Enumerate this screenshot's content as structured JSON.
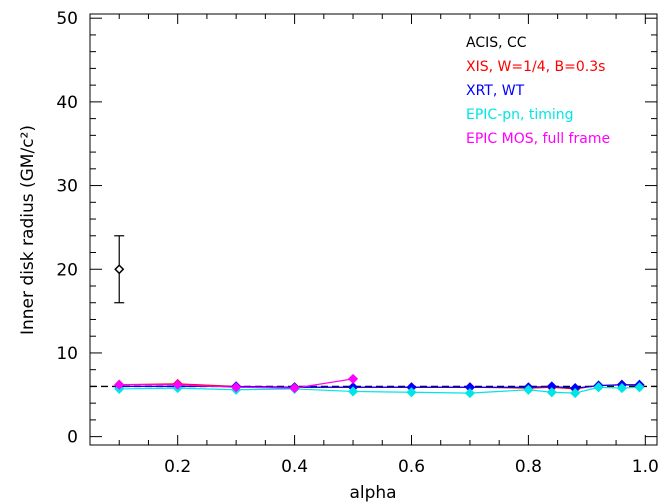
{
  "chart_data": {
    "type": "scatter",
    "xlabel": "alpha",
    "ylabel": "Inner disk radius (GM/c²)",
    "xlim": [
      0.05,
      1.02
    ],
    "ylim": [
      -1,
      50.5
    ],
    "x_ticks": [
      "0.2",
      "0.4",
      "0.6",
      "0.8",
      "1.0"
    ],
    "y_ticks": [
      "0",
      "10",
      "20",
      "30",
      "40",
      "50"
    ],
    "reference_line": {
      "y": 6,
      "style": "dashed",
      "color": "#000000"
    },
    "series": [
      {
        "name": "ACIS, CC",
        "color": "#000000",
        "marker": "diamond",
        "x": [
          0.1
        ],
        "y": [
          20
        ],
        "yerr": [
          4
        ]
      },
      {
        "name": "XIS, W=1/4, B=0.3s",
        "color": "#ff0000",
        "marker": "diamond",
        "x": [
          0.1,
          0.2,
          0.3,
          0.4,
          0.5,
          0.6,
          0.7,
          0.8,
          0.84,
          0.88,
          0.92,
          0.96,
          0.99
        ],
        "y": [
          6.2,
          6.3,
          6.0,
          5.9,
          5.9,
          5.9,
          5.9,
          5.8,
          5.9,
          5.7,
          6.1,
          6.2,
          6.1
        ]
      },
      {
        "name": "XRT, WT",
        "color": "#0000ff",
        "marker": "diamond",
        "x": [
          0.1,
          0.2,
          0.3,
          0.4,
          0.5,
          0.6,
          0.7,
          0.8,
          0.84,
          0.88,
          0.92,
          0.96,
          0.99
        ],
        "y": [
          6.0,
          6.0,
          6.0,
          5.9,
          5.9,
          5.9,
          5.9,
          5.9,
          6.0,
          5.8,
          6.1,
          6.2,
          6.2
        ]
      },
      {
        "name": "EPIC-pn, timing",
        "color": "#00e5e5",
        "marker": "diamond",
        "x": [
          0.1,
          0.2,
          0.3,
          0.4,
          0.5,
          0.6,
          0.7,
          0.8,
          0.84,
          0.88,
          0.92,
          0.96,
          0.99
        ],
        "y": [
          5.7,
          5.8,
          5.6,
          5.7,
          5.4,
          5.3,
          5.2,
          5.6,
          5.3,
          5.2,
          5.9,
          5.8,
          5.9
        ]
      },
      {
        "name": "EPIC MOS, full frame",
        "color": "#ff00ff",
        "marker": "diamond",
        "x": [
          0.1,
          0.2,
          0.3,
          0.4,
          0.5
        ],
        "y": [
          6.2,
          6.2,
          5.9,
          5.8,
          6.9
        ]
      }
    ],
    "legend": {
      "placement": "top-right"
    }
  }
}
